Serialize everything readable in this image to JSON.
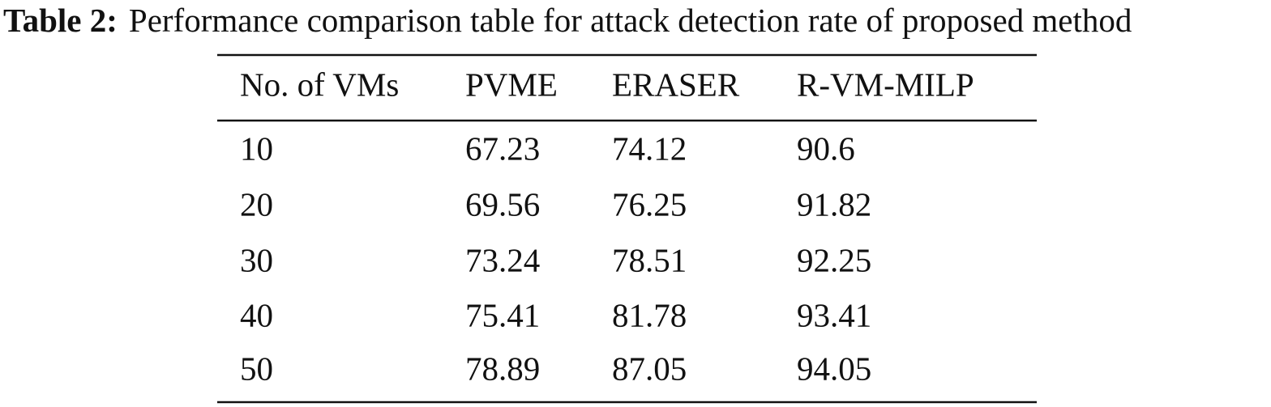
{
  "caption": {
    "label": "Table 2:",
    "text": "Performance comparison table for attack detection rate of proposed method"
  },
  "table": {
    "header": [
      "No. of VMs",
      "PVME",
      "ERASER",
      "R-VM-MILP"
    ],
    "rows": [
      [
        "10",
        "67.23",
        "74.12",
        "90.6"
      ],
      [
        "20",
        "69.56",
        "76.25",
        "91.82"
      ],
      [
        "30",
        "73.24",
        "78.51",
        "92.25"
      ],
      [
        "40",
        "75.41",
        "81.78",
        "93.41"
      ],
      [
        "50",
        "78.89",
        "87.05",
        "94.05"
      ]
    ]
  }
}
